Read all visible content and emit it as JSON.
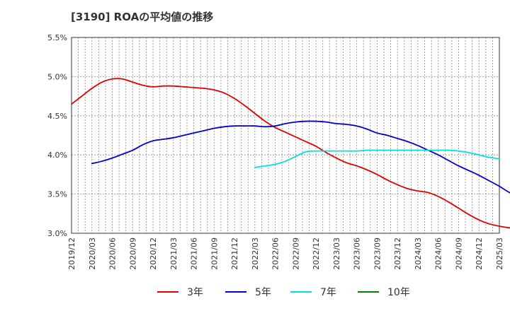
{
  "chart_data": {
    "type": "line",
    "title": "[3190]  ROAの平均値の推移",
    "xlabel": "",
    "ylabel": "",
    "ylim": [
      3.0,
      5.5
    ],
    "y_ticks": [
      "3.0%",
      "3.5%",
      "4.0%",
      "4.5%",
      "5.0%",
      "5.5%"
    ],
    "y_tick_values": [
      3.0,
      3.5,
      4.0,
      4.5,
      5.0,
      5.5
    ],
    "x_ticks": [
      "2019/12",
      "2020/03",
      "2020/06",
      "2020/09",
      "2020/12",
      "2021/03",
      "2021/06",
      "2021/09",
      "2021/12",
      "2022/03",
      "2022/06",
      "2022/09",
      "2022/12",
      "2023/03",
      "2023/06",
      "2023/09",
      "2023/12",
      "2024/03",
      "2024/06",
      "2024/09",
      "2024/12",
      "2025/03"
    ],
    "grid": true,
    "legend_position": "bottom",
    "series": [
      {
        "name": "3年",
        "color": "#e00000",
        "start": "2019/12",
        "values": [
          4.65,
          4.75,
          4.85,
          4.93,
          4.97,
          4.97,
          4.93,
          4.89,
          4.87,
          4.88,
          4.88,
          4.87,
          4.86,
          4.85,
          4.83,
          4.79,
          4.72,
          4.63,
          4.53,
          4.43,
          4.35,
          4.29,
          4.23,
          4.17,
          4.11,
          4.03,
          3.96,
          3.9,
          3.86,
          3.81,
          3.75,
          3.68,
          3.62,
          3.57,
          3.54,
          3.52,
          3.47,
          3.4,
          3.32,
          3.24,
          3.17,
          3.12,
          3.09,
          3.07,
          3.07,
          3.09,
          3.13
        ]
      },
      {
        "name": "5年",
        "color": "#0000c8",
        "start": "2020/03",
        "values": [
          3.89,
          3.92,
          3.96,
          4.01,
          4.06,
          4.13,
          4.18,
          4.2,
          4.22,
          4.25,
          4.28,
          4.31,
          4.34,
          4.36,
          4.37,
          4.37,
          4.37,
          4.36,
          4.37,
          4.4,
          4.42,
          4.43,
          4.43,
          4.42,
          4.4,
          4.39,
          4.37,
          4.33,
          4.28,
          4.25,
          4.21,
          4.17,
          4.12,
          4.06,
          4.0,
          3.93,
          3.86,
          3.8,
          3.74,
          3.67,
          3.6,
          3.52,
          3.48,
          3.45
        ]
      },
      {
        "name": "7年",
        "color": "#00e0e0",
        "start": "2022/03",
        "values": [
          3.84,
          3.86,
          3.88,
          3.92,
          3.98,
          4.04,
          4.05,
          4.05,
          4.05,
          4.05,
          4.05,
          4.06,
          4.06,
          4.06,
          4.06,
          4.06,
          4.06,
          4.06,
          4.06,
          4.06,
          4.05,
          4.03,
          4.0,
          3.97,
          3.95
        ]
      },
      {
        "name": "10年",
        "color": "#008000",
        "start": "2024/12",
        "values": []
      }
    ]
  }
}
